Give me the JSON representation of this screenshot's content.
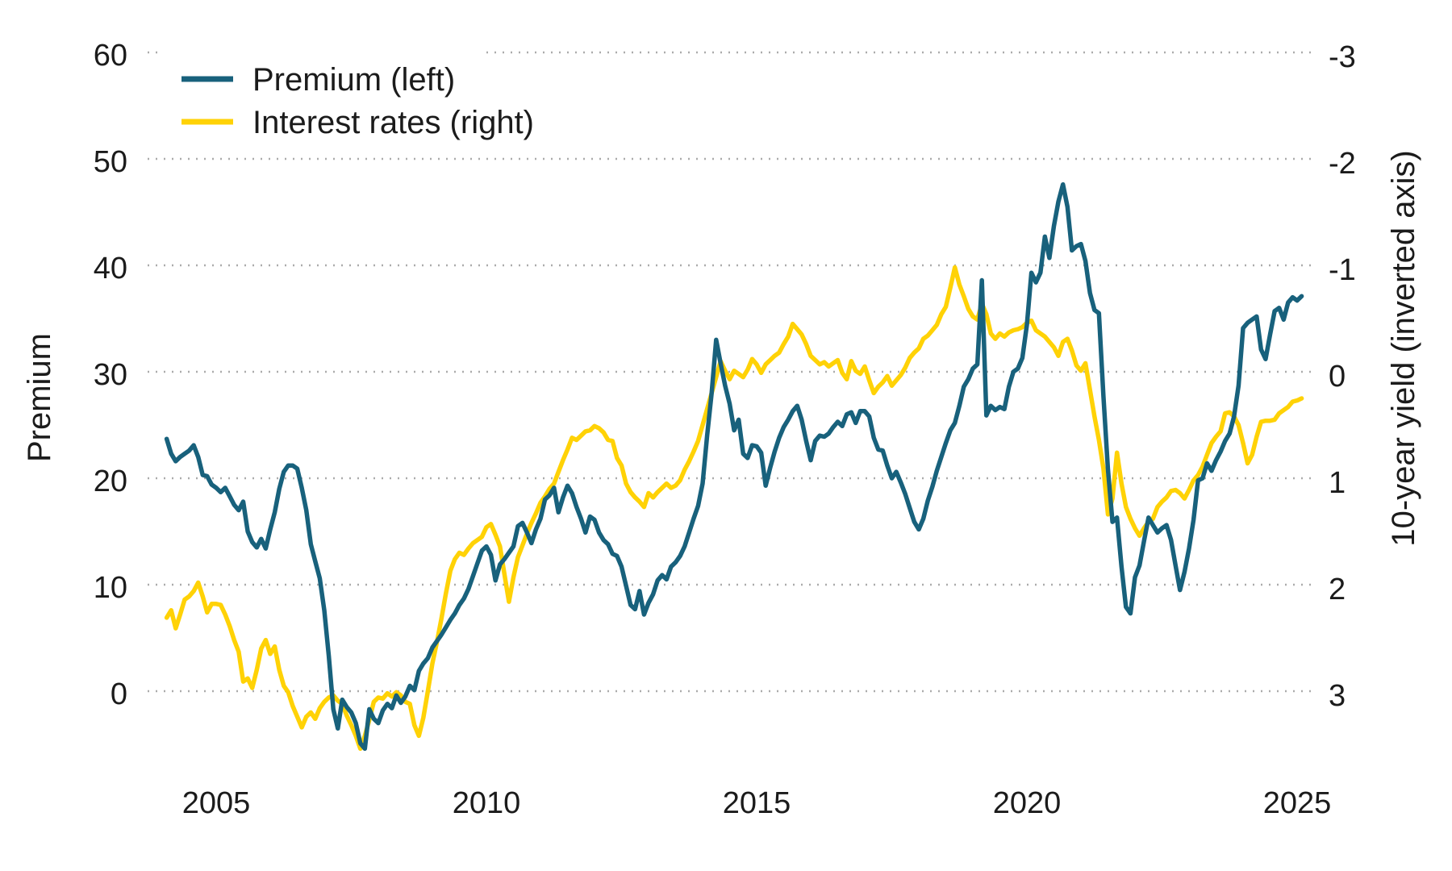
{
  "chart_data": {
    "type": "line",
    "title": "",
    "grid": "horizontal-dotted",
    "legend": {
      "position": "top-left",
      "items": [
        "Premium (left)",
        "Interest rates (right)"
      ]
    },
    "x_axis": {
      "ticks": [
        "2005",
        "2010",
        "2015",
        "2020",
        "2025"
      ],
      "tick_years": [
        2005,
        2010,
        2015,
        2020,
        2025
      ],
      "start_decimal_year": 2004.08,
      "end_decimal_year": 2025.17
    },
    "left_axis": {
      "label": "Premium",
      "ticks": [
        60,
        50,
        40,
        30,
        20,
        10,
        0
      ]
    },
    "right_axis": {
      "label": "10-year yield (inverted axis)",
      "ticks": [
        -3,
        -2,
        -1,
        0,
        1,
        2,
        3
      ],
      "inverted": true,
      "alignment_note": "right-axis value r sits on the same gridline as left-axis value 30 - 10*r"
    },
    "colors": {
      "premium": "#18617C",
      "interest_rates": "#FFD206",
      "grid": "#ABABAB",
      "text": "#1B1B1B",
      "background": "#FFFFFF"
    },
    "series": [
      {
        "name": "Premium (left)",
        "axis": "left",
        "color": "#18617C",
        "frequency": "monthly",
        "start": "2004-02",
        "values": [
          23.7,
          22.3,
          21.6,
          22.0,
          22.3,
          22.6,
          23.1,
          22.0,
          20.3,
          20.2,
          19.4,
          19.1,
          18.7,
          19.1,
          18.3,
          17.5,
          17.0,
          17.8,
          15.0,
          14.0,
          13.5,
          14.3,
          13.4,
          15.2,
          16.8,
          19.0,
          20.6,
          21.2,
          21.2,
          20.9,
          19.1,
          17.0,
          13.8,
          12.2,
          10.6,
          7.6,
          3.3,
          -1.7,
          -3.5,
          -0.8,
          -1.5,
          -2.0,
          -3.0,
          -4.9,
          -5.4,
          -1.7,
          -2.6,
          -3.0,
          -1.8,
          -1.2,
          -1.6,
          -0.4,
          -1.1,
          -0.5,
          0.5,
          0.1,
          1.9,
          2.6,
          3.1,
          4.1,
          4.7,
          5.3,
          6.0,
          6.7,
          7.3,
          8.1,
          8.7,
          9.6,
          10.8,
          12.0,
          13.2,
          13.6,
          12.8,
          10.4,
          11.9,
          12.4,
          13.0,
          13.6,
          15.5,
          15.8,
          14.9,
          13.9,
          15.2,
          16.2,
          18.0,
          18.4,
          19.1,
          16.8,
          18.2,
          19.3,
          18.6,
          17.3,
          16.2,
          14.9,
          16.4,
          16.1,
          14.9,
          14.2,
          13.8,
          12.9,
          12.7,
          11.7,
          9.9,
          8.1,
          7.7,
          9.4,
          7.2,
          8.3,
          9.1,
          10.4,
          10.9,
          10.5,
          11.7,
          12.1,
          12.7,
          13.6,
          14.9,
          16.2,
          17.4,
          19.5,
          24.0,
          28.0,
          33.0,
          30.8,
          28.7,
          27.0,
          24.5,
          25.5,
          22.3,
          21.9,
          23.1,
          23.0,
          22.4,
          19.3,
          21.0,
          22.5,
          23.8,
          24.8,
          25.5,
          26.3,
          26.8,
          25.5,
          23.5,
          21.7,
          23.5,
          24.0,
          23.9,
          24.2,
          24.8,
          25.3,
          24.9,
          26.0,
          26.2,
          25.2,
          26.3,
          26.3,
          25.8,
          23.8,
          22.7,
          22.6,
          21.2,
          20.0,
          20.6,
          19.6,
          18.5,
          17.2,
          15.9,
          15.2,
          16.2,
          17.9,
          19.2,
          20.7,
          22.0,
          23.3,
          24.5,
          25.2,
          26.8,
          28.6,
          29.3,
          30.3,
          30.7,
          38.6,
          25.9,
          26.8,
          26.4,
          26.7,
          26.5,
          28.6,
          30.0,
          30.3,
          31.3,
          34.4,
          39.3,
          38.4,
          39.3,
          42.7,
          40.7,
          43.7,
          46.0,
          47.6,
          45.5,
          41.4,
          41.8,
          42.0,
          40.4,
          37.4,
          35.8,
          35.5,
          27.7,
          20.8,
          15.9,
          16.3,
          11.7,
          7.9,
          7.3,
          10.7,
          11.8,
          14.1,
          16.3,
          15.6,
          14.9,
          15.3,
          15.6,
          14.2,
          11.8,
          9.5,
          11.2,
          13.4,
          16.1,
          19.8,
          20.0,
          21.4,
          20.7,
          21.7,
          22.5,
          23.5,
          24.2,
          25.8,
          28.7,
          34.1,
          34.6,
          34.9,
          35.2,
          32.1,
          31.2,
          33.5,
          35.7,
          36.0,
          34.9,
          36.5,
          37.0,
          36.7,
          37.1
        ]
      },
      {
        "name": "Interest rates (right)",
        "axis": "right",
        "color": "#FFD206",
        "frequency": "monthly",
        "start": "2004-02",
        "values": [
          2.31,
          2.24,
          2.41,
          2.28,
          2.14,
          2.11,
          2.06,
          1.98,
          2.11,
          2.26,
          2.18,
          2.18,
          2.19,
          2.28,
          2.39,
          2.52,
          2.63,
          2.91,
          2.88,
          2.97,
          2.8,
          2.6,
          2.52,
          2.65,
          2.58,
          2.8,
          2.95,
          3.01,
          3.14,
          3.24,
          3.34,
          3.24,
          3.2,
          3.26,
          3.16,
          3.1,
          3.06,
          3.04,
          3.09,
          3.12,
          3.23,
          3.32,
          3.42,
          3.54,
          3.42,
          3.27,
          3.1,
          3.06,
          3.07,
          3.02,
          3.05,
          3.01,
          3.04,
          3.1,
          3.12,
          3.32,
          3.42,
          3.25,
          3.0,
          2.74,
          2.54,
          2.32,
          2.08,
          1.87,
          1.76,
          1.7,
          1.72,
          1.66,
          1.61,
          1.58,
          1.55,
          1.46,
          1.43,
          1.53,
          1.64,
          1.9,
          2.16,
          1.93,
          1.74,
          1.63,
          1.52,
          1.42,
          1.33,
          1.23,
          1.17,
          1.1,
          1.05,
          0.94,
          0.83,
          0.73,
          0.62,
          0.64,
          0.6,
          0.56,
          0.55,
          0.51,
          0.53,
          0.57,
          0.64,
          0.65,
          0.81,
          0.88,
          1.05,
          1.13,
          1.18,
          1.22,
          1.27,
          1.14,
          1.18,
          1.13,
          1.09,
          1.05,
          1.09,
          1.07,
          1.02,
          0.92,
          0.84,
          0.75,
          0.65,
          0.5,
          0.35,
          0.2,
          0.05,
          -0.1,
          -0.01,
          0.07,
          -0.01,
          0.02,
          0.05,
          -0.02,
          -0.12,
          -0.07,
          0.01,
          -0.07,
          -0.11,
          -0.15,
          -0.18,
          -0.26,
          -0.33,
          -0.45,
          -0.4,
          -0.35,
          -0.26,
          -0.15,
          -0.11,
          -0.07,
          -0.09,
          -0.05,
          -0.08,
          -0.11,
          0.01,
          0.07,
          -0.1,
          -0.01,
          0.02,
          -0.05,
          0.08,
          0.2,
          0.14,
          0.1,
          0.04,
          0.13,
          0.08,
          0.03,
          -0.04,
          -0.13,
          -0.18,
          -0.22,
          -0.31,
          -0.34,
          -0.39,
          -0.44,
          -0.54,
          -0.61,
          -0.79,
          -0.98,
          -0.82,
          -0.71,
          -0.59,
          -0.52,
          -0.49,
          -0.64,
          -0.54,
          -0.36,
          -0.31,
          -0.36,
          -0.33,
          -0.37,
          -0.39,
          -0.4,
          -0.42,
          -0.46,
          -0.48,
          -0.39,
          -0.36,
          -0.33,
          -0.28,
          -0.23,
          -0.15,
          -0.28,
          -0.31,
          -0.2,
          -0.06,
          -0.01,
          -0.08,
          0.17,
          0.42,
          0.64,
          0.91,
          1.34,
          1.19,
          0.76,
          1.05,
          1.27,
          1.38,
          1.47,
          1.54,
          1.47,
          1.41,
          1.38,
          1.27,
          1.22,
          1.18,
          1.12,
          1.11,
          1.14,
          1.19,
          1.11,
          1.02,
          0.97,
          0.89,
          0.78,
          0.67,
          0.61,
          0.56,
          0.39,
          0.38,
          0.42,
          0.5,
          0.67,
          0.86,
          0.78,
          0.61,
          0.47,
          0.46,
          0.46,
          0.45,
          0.39,
          0.36,
          0.33,
          0.28,
          0.27,
          0.25
        ]
      }
    ]
  }
}
